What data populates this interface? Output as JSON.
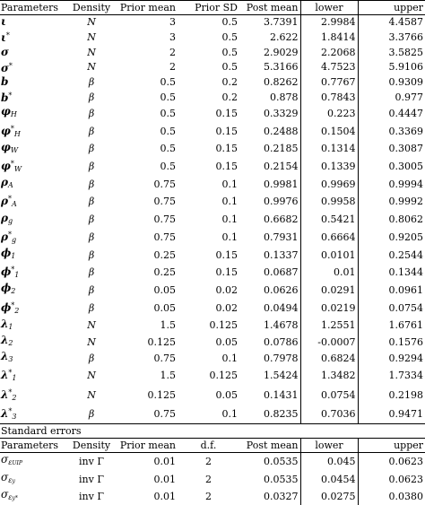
{
  "header": {
    "parameters": "Parameters",
    "density": "Density",
    "prior_mean": "Prior mean",
    "prior_sd": "Prior SD",
    "post_mean": "Post mean",
    "lower": "lower",
    "upper": "upper"
  },
  "rows": [
    {
      "base": "ι",
      "sub": "",
      "star": "",
      "density": "N",
      "prior_mean": "3",
      "prior_sd": "0.5",
      "post_mean": "3.7391",
      "lower": "2.9984",
      "upper": "4.4587"
    },
    {
      "base": "ι",
      "sub": "",
      "star": "*",
      "density": "N",
      "prior_mean": "3",
      "prior_sd": "0.5",
      "post_mean": "2.622",
      "lower": "1.8414",
      "upper": "3.3766"
    },
    {
      "base": "σ",
      "sub": "",
      "star": "",
      "density": "N",
      "prior_mean": "2",
      "prior_sd": "0.5",
      "post_mean": "2.9029",
      "lower": "2.2068",
      "upper": "3.5825"
    },
    {
      "base": "σ",
      "sub": "",
      "star": "*",
      "density": "N",
      "prior_mean": "2",
      "prior_sd": "0.5",
      "post_mean": "5.3166",
      "lower": "4.7523",
      "upper": "5.9106"
    },
    {
      "base": "b",
      "sub": "",
      "star": "",
      "density": "β",
      "prior_mean": "0.5",
      "prior_sd": "0.2",
      "post_mean": "0.8262",
      "lower": "0.7767",
      "upper": "0.9309"
    },
    {
      "base": "b",
      "sub": "",
      "star": "*",
      "density": "β",
      "prior_mean": "0.5",
      "prior_sd": "0.2",
      "post_mean": "0.878",
      "lower": "0.7843",
      "upper": "0.977"
    },
    {
      "base": "φ",
      "sub": "H",
      "star": "",
      "density": "β",
      "prior_mean": "0.5",
      "prior_sd": "0.15",
      "post_mean": "0.3329",
      "lower": "0.223",
      "upper": "0.4447"
    },
    {
      "base": "φ",
      "sub": "H",
      "star": "*",
      "density": "β",
      "prior_mean": "0.5",
      "prior_sd": "0.15",
      "post_mean": "0.2488",
      "lower": "0.1504",
      "upper": "0.3369"
    },
    {
      "base": "φ",
      "sub": "W",
      "star": "",
      "density": "β",
      "prior_mean": "0.5",
      "prior_sd": "0.15",
      "post_mean": "0.2185",
      "lower": "0.1314",
      "upper": "0.3087"
    },
    {
      "base": "φ",
      "sub": "W",
      "star": "*",
      "density": "β",
      "prior_mean": "0.5",
      "prior_sd": "0.15",
      "post_mean": "0.2154",
      "lower": "0.1339",
      "upper": "0.3005"
    },
    {
      "base": "ρ",
      "sub": "A",
      "star": "",
      "density": "β",
      "prior_mean": "0.75",
      "prior_sd": "0.1",
      "post_mean": "0.9981",
      "lower": "0.9969",
      "upper": "0.9994"
    },
    {
      "base": "ρ",
      "sub": "A",
      "star": "*",
      "density": "β",
      "prior_mean": "0.75",
      "prior_sd": "0.1",
      "post_mean": "0.9976",
      "lower": "0.9958",
      "upper": "0.9992"
    },
    {
      "base": "ρ",
      "sub": "g",
      "star": "",
      "density": "β",
      "prior_mean": "0.75",
      "prior_sd": "0.1",
      "post_mean": "0.6682",
      "lower": "0.5421",
      "upper": "0.8062"
    },
    {
      "base": "ρ",
      "sub": "g",
      "star": "*",
      "density": "β",
      "prior_mean": "0.75",
      "prior_sd": "0.1",
      "post_mean": "0.7931",
      "lower": "0.6664",
      "upper": "0.9205"
    },
    {
      "base": "ϕ",
      "sub": "1",
      "star": "",
      "density": "β",
      "prior_mean": "0.25",
      "prior_sd": "0.15",
      "post_mean": "0.1337",
      "lower": "0.0101",
      "upper": "0.2544"
    },
    {
      "base": "ϕ",
      "sub": "1",
      "star": "*",
      "density": "β",
      "prior_mean": "0.25",
      "prior_sd": "0.15",
      "post_mean": "0.0687",
      "lower": "0.01",
      "upper": "0.1344"
    },
    {
      "base": "ϕ",
      "sub": "2",
      "star": "",
      "density": "β",
      "prior_mean": "0.05",
      "prior_sd": "0.02",
      "post_mean": "0.0626",
      "lower": "0.0291",
      "upper": "0.0961"
    },
    {
      "base": "ϕ",
      "sub": "2",
      "star": "*",
      "density": "β",
      "prior_mean": "0.05",
      "prior_sd": "0.02",
      "post_mean": "0.0494",
      "lower": "0.0219",
      "upper": "0.0754"
    },
    {
      "base": "λ",
      "sub": "1",
      "star": "",
      "density": "N",
      "prior_mean": "1.5",
      "prior_sd": "0.125",
      "post_mean": "1.4678",
      "lower": "1.2551",
      "upper": "1.6761"
    },
    {
      "base": "λ",
      "sub": "2",
      "star": "",
      "density": "N",
      "prior_mean": "0.125",
      "prior_sd": "0.05",
      "post_mean": "0.0786",
      "lower": "-0.0007",
      "upper": "0.1576"
    },
    {
      "base": "λ",
      "sub": "3",
      "star": "",
      "density": "β",
      "prior_mean": "0.75",
      "prior_sd": "0.1",
      "post_mean": "0.7978",
      "lower": "0.6824",
      "upper": "0.9294"
    },
    {
      "base": "λ",
      "sub": "1",
      "star": "*",
      "density": "N",
      "prior_mean": "1.5",
      "prior_sd": "0.125",
      "post_mean": "1.5424",
      "lower": "1.3482",
      "upper": "1.7334"
    },
    {
      "base": "λ",
      "sub": "2",
      "star": "*",
      "density": "N",
      "prior_mean": "0.125",
      "prior_sd": "0.05",
      "post_mean": "0.1431",
      "lower": "0.0754",
      "upper": "0.2198"
    },
    {
      "base": "λ",
      "sub": "3",
      "star": "*",
      "density": "β",
      "prior_mean": "0.75",
      "prior_sd": "0.1",
      "post_mean": "0.8235",
      "lower": "0.7036",
      "upper": "0.9471"
    }
  ],
  "section2": {
    "title": "Standard errors",
    "header": {
      "parameters": "Parameters",
      "density": "Density",
      "prior_mean": "Prior mean",
      "df": "d.f.",
      "post_mean": "Post mean",
      "lower": "lower",
      "upper": "upper"
    },
    "rows": [
      {
        "base": "σ",
        "sub": "ε",
        "subsub": "UIP",
        "density": "inv Γ",
        "prior_mean": "0.01",
        "df": "2",
        "post_mean": "0.0535",
        "lower": "0.045",
        "upper": "0.0623"
      },
      {
        "base": "σ",
        "sub": "ε",
        "subsub": "y",
        "density": "inv Γ",
        "prior_mean": "0.01",
        "df": "2",
        "post_mean": "0.0535",
        "lower": "0.0454",
        "upper": "0.0623"
      },
      {
        "base": "σ",
        "sub": "ε",
        "subsub": "y*",
        "density": "inv Γ",
        "prior_mean": "0.01",
        "df": "2",
        "post_mean": "0.0327",
        "lower": "0.0275",
        "upper": "0.0380"
      }
    ]
  }
}
